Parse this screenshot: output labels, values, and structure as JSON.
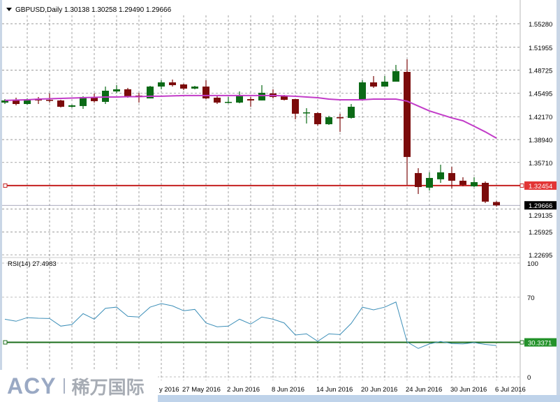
{
  "header": {
    "symbol_title": "GBPUSD,Daily",
    "open": "1.30138",
    "high": "1.30258",
    "low": "1.29490",
    "close": "1.29666",
    "menu_icon": "triangle-down-icon"
  },
  "colors": {
    "bull": "#0b6a16",
    "bear": "#7b0b0b",
    "ma": "#c23cc8",
    "rsi_line": "#3d8fb8",
    "red_level": "#c42020",
    "green_level": "#1b6e1b",
    "grid": "#7a7a7a"
  },
  "price_axis": {
    "ticks": [
      "1.55280",
      "1.51955",
      "1.48725",
      "1.45495",
      "1.42170",
      "1.38940",
      "1.35710",
      "1.29135",
      "1.25925",
      "1.22695"
    ],
    "tick_values": [
      1.5528,
      1.51955,
      1.48725,
      1.45495,
      1.4217,
      1.3894,
      1.3571,
      1.29135,
      1.25925,
      1.22695
    ],
    "level_label": "1.32454",
    "level_value": 1.32454,
    "current_label": "1.29666",
    "current_value": 1.29666
  },
  "rsi": {
    "title": "RSI(14) 27.4983",
    "ticks": [
      "100",
      "70",
      "0"
    ],
    "tick_values": [
      100,
      70,
      0
    ],
    "level_label": "30.3371",
    "level_value": 30.3371,
    "values": [
      50.7,
      48.9,
      52.1,
      51.5,
      51.3,
      44.6,
      46.0,
      55.6,
      50.7,
      60.3,
      61.3,
      53.2,
      52.6,
      61.3,
      64.4,
      62.4,
      58.1,
      59.3,
      47.4,
      44.0,
      44.6,
      50.7,
      46.4,
      52.6,
      50.7,
      47.4,
      36.8,
      37.8,
      31.3,
      37.8,
      37.2,
      47.0,
      61.3,
      58.9,
      61.3,
      65.8,
      30.7,
      25.0,
      29.0,
      31.1,
      29.3,
      29.0,
      30.1,
      28.5,
      27.5
    ]
  },
  "time_axis": {
    "labels": [
      {
        "text": "y 2016",
        "bar": 12
      },
      {
        "text": "27 May 2016",
        "bar": 16
      },
      {
        "text": "2 Jun 2016",
        "bar": 20
      },
      {
        "text": "8 Jun 2016",
        "bar": 24
      },
      {
        "text": "14 Jun 2016",
        "bar": 28
      },
      {
        "text": "20 Jun 2016",
        "bar": 32
      },
      {
        "text": "24 Jun 2016",
        "bar": 36
      },
      {
        "text": "30 Jun 2016",
        "bar": 40
      },
      {
        "text": "6 Jul 2016",
        "bar": 44
      }
    ]
  },
  "chart_data": {
    "type": "candlestick",
    "title": "GBPUSD,Daily",
    "ylim": [
      1.22695,
      1.5528
    ],
    "ohlc": [
      [
        1.4416,
        1.4465,
        1.4396,
        1.4446
      ],
      [
        1.4446,
        1.4485,
        1.4377,
        1.4396
      ],
      [
        1.4396,
        1.4475,
        1.4387,
        1.4465
      ],
      [
        1.4465,
        1.4495,
        1.4396,
        1.4446
      ],
      [
        1.4455,
        1.4544,
        1.4416,
        1.445
      ],
      [
        1.4446,
        1.4455,
        1.4347,
        1.4357
      ],
      [
        1.4357,
        1.4387,
        1.4347,
        1.4377
      ],
      [
        1.4367,
        1.4505,
        1.4327,
        1.4495
      ],
      [
        1.4495,
        1.4544,
        1.4416,
        1.4436
      ],
      [
        1.4426,
        1.4642,
        1.4396,
        1.4583
      ],
      [
        1.4573,
        1.4662,
        1.4554,
        1.4603
      ],
      [
        1.4603,
        1.4623,
        1.4485,
        1.4505
      ],
      [
        1.4515,
        1.4554,
        1.4416,
        1.4495
      ],
      [
        1.4475,
        1.4652,
        1.4475,
        1.4642
      ],
      [
        1.4642,
        1.4731,
        1.4603,
        1.4701
      ],
      [
        1.4701,
        1.4741,
        1.4642,
        1.4662
      ],
      [
        1.4672,
        1.4682,
        1.4593,
        1.4613
      ],
      [
        1.4613,
        1.4652,
        1.4603,
        1.4642
      ],
      [
        1.4642,
        1.4731,
        1.4465,
        1.4475
      ],
      [
        1.4485,
        1.4505,
        1.4396,
        1.4416
      ],
      [
        1.4416,
        1.4495,
        1.4406,
        1.4426
      ],
      [
        1.4416,
        1.4573,
        1.4406,
        1.4524
      ],
      [
        1.4465,
        1.4495,
        1.4357,
        1.4446
      ],
      [
        1.4446,
        1.4662,
        1.4446,
        1.4554
      ],
      [
        1.4544,
        1.4603,
        1.4475,
        1.4495
      ],
      [
        1.4505,
        1.4524,
        1.4446,
        1.4455
      ],
      [
        1.4465,
        1.447,
        1.418,
        1.4259
      ],
      [
        1.4268,
        1.4337,
        1.4121,
        1.4278
      ],
      [
        1.4268,
        1.4278,
        1.4091,
        1.4111
      ],
      [
        1.4111,
        1.4229,
        1.4101,
        1.4209
      ],
      [
        1.4209,
        1.4259,
        1.4003,
        1.4204
      ],
      [
        1.42,
        1.4396,
        1.419,
        1.4357
      ],
      [
        1.4465,
        1.4731,
        1.4465,
        1.4701
      ],
      [
        1.4701,
        1.479,
        1.4623,
        1.4642
      ],
      [
        1.4642,
        1.479,
        1.4642,
        1.4711
      ],
      [
        1.4711,
        1.4947,
        1.4711,
        1.4859
      ],
      [
        1.4849,
        1.5026,
        1.3255,
        1.3649
      ],
      [
        1.3422,
        1.3491,
        1.3127,
        1.3225
      ],
      [
        1.3216,
        1.3432,
        1.3176,
        1.3353
      ],
      [
        1.3334,
        1.354,
        1.3284,
        1.3432
      ],
      [
        1.3422,
        1.351,
        1.3206,
        1.3314
      ],
      [
        1.3314,
        1.3363,
        1.3235,
        1.3255
      ],
      [
        1.3235,
        1.3363,
        1.3225,
        1.3294
      ],
      [
        1.3284,
        1.3304,
        1.2999,
        1.3019
      ],
      [
        1.30138,
        1.30258,
        1.2949,
        1.29666
      ]
    ],
    "moving_average": [
      1.4446,
      1.4451,
      1.4455,
      1.4465,
      1.447,
      1.4475,
      1.448,
      1.4485,
      1.449,
      1.4495,
      1.4495,
      1.45,
      1.45,
      1.4505,
      1.4505,
      1.451,
      1.4515,
      1.4515,
      1.4515,
      1.4515,
      1.4515,
      1.4515,
      1.4515,
      1.4515,
      1.4515,
      1.451,
      1.4505,
      1.4495,
      1.4485,
      1.4465,
      1.4455,
      1.4455,
      1.4455,
      1.4465,
      1.4465,
      1.4465,
      1.4436,
      1.4367,
      1.4298,
      1.4249,
      1.42,
      1.416,
      1.4082,
      1.4003,
      1.3914
    ]
  },
  "logo": {
    "brand": "ACY",
    "chinese": "稀万国际"
  }
}
